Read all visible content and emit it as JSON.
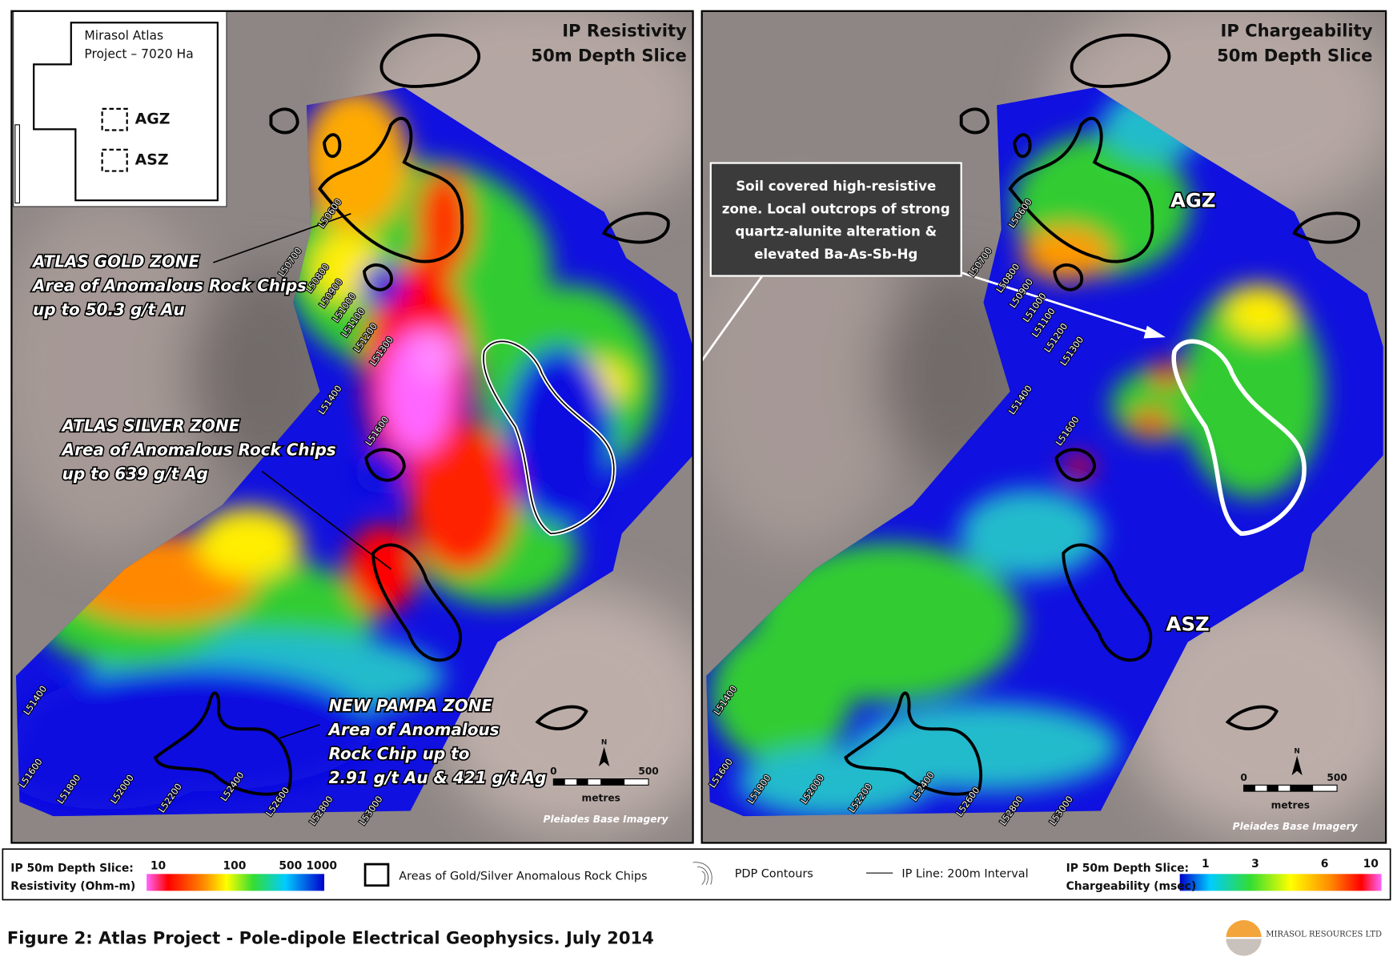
{
  "left_panel": {
    "title": [
      "IP Resistivity",
      "50m Depth Slice"
    ],
    "inset": {
      "title": [
        "Mirasol  Atlas",
        "Project – 7020 Ha"
      ],
      "labels": [
        "AGZ",
        "ASZ"
      ]
    },
    "zones": [
      {
        "name": "ATLAS GOLD ZONE",
        "lines": [
          "Area of Anomalous Rock Chips",
          "up to  50.3 g/t Au"
        ]
      },
      {
        "name": "ATLAS SILVER ZONE",
        "lines": [
          "Area of Anomalous Rock Chips",
          "up to  639  g/t Ag"
        ]
      },
      {
        "name": "NEW PAMPA ZONE",
        "lines": [
          "Area of Anomalous",
          "Rock Chip up to",
          "2.91 g/t Au & 421 g/t Ag"
        ]
      }
    ],
    "line_labels": [
      "L50600",
      "L50700",
      "L50800",
      "L50900",
      "L51000",
      "L51100",
      "L51200",
      "L51300",
      "L51400",
      "L51600",
      "L51400",
      "L51600",
      "L51800",
      "L52000",
      "L52200",
      "L52400",
      "L52600",
      "L52800",
      "L53000"
    ],
    "scale": {
      "start": 0,
      "end": 500,
      "unit": "metres",
      "north": "N"
    },
    "imagery": "Pleiades Base Imagery"
  },
  "right_panel": {
    "title": [
      "IP Chargeability",
      "50m Depth Slice"
    ],
    "callout": [
      "Soil covered high-resistive",
      "zone. Local outcrops of strong",
      "quartz-alunite  alteration &",
      "elevated Ba-As-Sb-Hg"
    ],
    "zones": [
      "AGZ",
      "ASZ"
    ],
    "line_labels": [
      "L50600",
      "L50700",
      "L50800",
      "L50900",
      "L51000",
      "L51100",
      "L51200",
      "L51300",
      "L51400",
      "L51600",
      "L51400",
      "L51600",
      "L51800",
      "L52000",
      "L52200",
      "L52400",
      "L52600",
      "L52800",
      "L53000"
    ],
    "scale": {
      "start": 0,
      "end": 500,
      "unit": "metres",
      "north": "N"
    },
    "imagery": "Pleiades Base Imagery"
  },
  "legend": {
    "resistivity": {
      "title": [
        "IP 50m Depth Slice:",
        "Resistivity (Ohm-m)"
      ],
      "ticks": [
        10,
        100,
        500,
        1000
      ]
    },
    "areas": "Areas of Gold/Silver Anomalous Rock Chips",
    "contours": "PDP Contours",
    "ip_line": "IP Line: 200m Interval",
    "chargeability": {
      "title": [
        "IP 50m Depth Slice:",
        "Chargeability (msec)"
      ],
      "ticks": [
        1,
        3,
        6,
        10
      ]
    }
  },
  "figure_caption": "Figure 2: Atlas Project - Pole-dipole Electrical Geophysics. July 2014",
  "logo": "MIRASOL RESOURCES LTD"
}
